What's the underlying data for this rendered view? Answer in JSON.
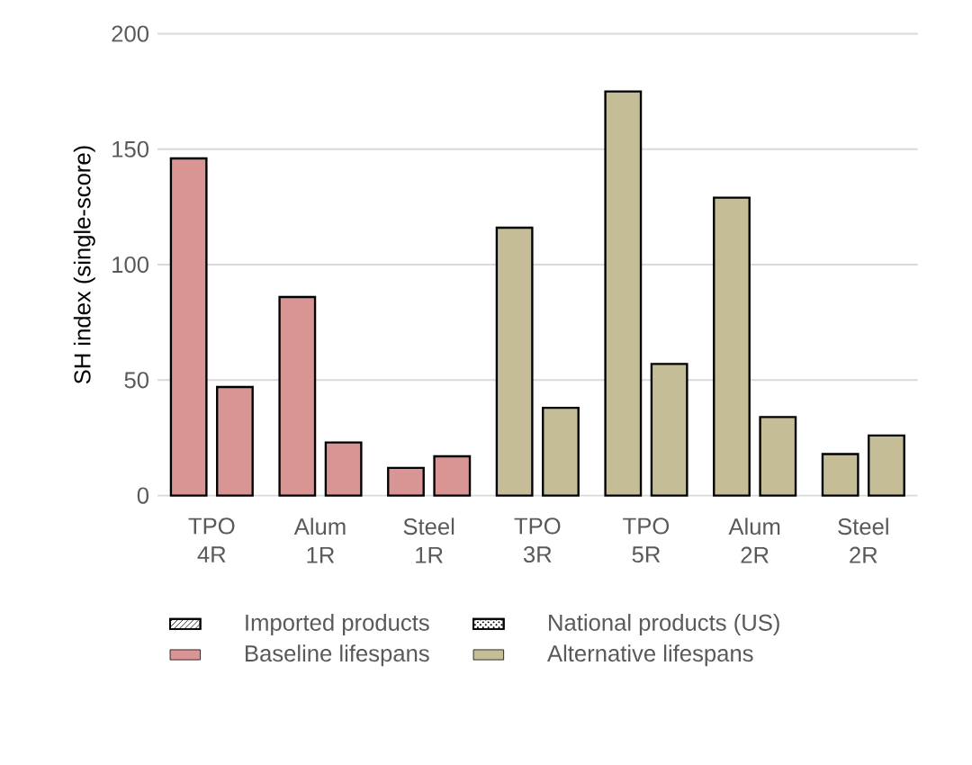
{
  "chart_data": {
    "type": "bar",
    "ylabel": "SH index (single-score)",
    "categories": [
      "TPO 4R",
      "Alum 1R",
      "Steel 1R",
      "TPO 3R",
      "TPO 5R",
      "Alum 2R",
      "Steel 2R"
    ],
    "series": [
      {
        "name": "Imported products",
        "colors": [
          "#d99594",
          "#d99594",
          "#d99594",
          "#c4bd97",
          "#c4bd97",
          "#c4bd97",
          "#c4bd97"
        ],
        "values": [
          146,
          86,
          12,
          116,
          175,
          129,
          18
        ]
      },
      {
        "name": "National products (US)",
        "colors": [
          "#d99594",
          "#d99594",
          "#d99594",
          "#c4bd97",
          "#c4bd97",
          "#c4bd97",
          "#c4bd97"
        ],
        "values": [
          47,
          23,
          17,
          38,
          57,
          34,
          26
        ]
      }
    ],
    "annotations": [
      "Baseline lifespans",
      "Alternative lifespans"
    ],
    "ylim": [
      0,
      200
    ],
    "yticks": [
      0,
      50,
      100,
      150,
      200
    ],
    "grid": "y",
    "legend": "bottom"
  }
}
